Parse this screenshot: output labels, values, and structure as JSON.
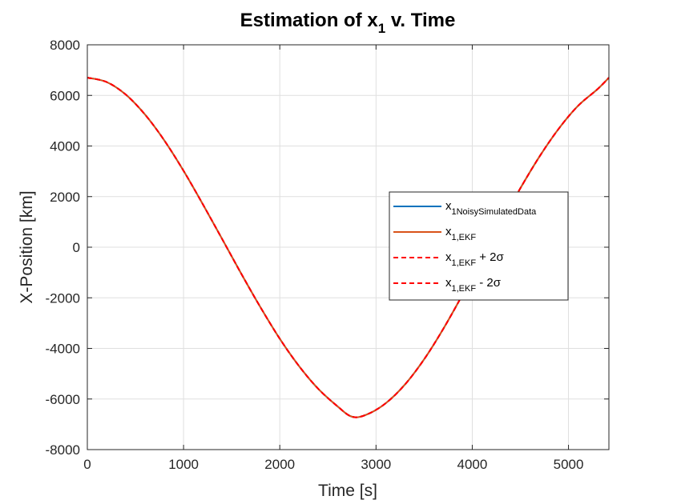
{
  "chart_data": {
    "type": "line",
    "title": "Estimation of x",
    "title_subscript": "1",
    "title_suffix": " v. Time",
    "xlabel": "Time [s]",
    "ylabel": "X-Position [km]",
    "xlim": [
      0,
      5420
    ],
    "ylim": [
      -8000,
      8000
    ],
    "xticks": [
      0,
      1000,
      2000,
      3000,
      4000,
      5000
    ],
    "yticks": [
      -8000,
      -6000,
      -4000,
      -2000,
      0,
      2000,
      4000,
      6000,
      8000
    ],
    "grid": true,
    "legend_position": "center-right",
    "x": [
      0,
      200,
      400,
      600,
      800,
      1000,
      1200,
      1400,
      1600,
      1800,
      2000,
      2200,
      2400,
      2600,
      2750,
      2900,
      3100,
      3300,
      3500,
      3700,
      3900,
      4100,
      4300,
      4500,
      4700,
      4900,
      5100,
      5300,
      5420
    ],
    "series": [
      {
        "name": "x",
        "name_sub": "1NoisySimulatedData",
        "name_suffix": "",
        "color": "#0072bd",
        "dash": "solid",
        "values": [
          6700,
          6530,
          6030,
          5240,
          4220,
          3020,
          1700,
          330,
          -1050,
          -2380,
          -3620,
          -4700,
          -5600,
          -6290,
          -6700,
          -6620,
          -6170,
          -5430,
          -4430,
          -3220,
          -1870,
          -440,
          970,
          2330,
          3590,
          4690,
          5590,
          6240,
          6700
        ]
      },
      {
        "name": "x",
        "name_sub": "1,EKF",
        "name_suffix": "",
        "color": "#d95319",
        "dash": "solid",
        "values": [
          6700,
          6530,
          6030,
          5240,
          4220,
          3020,
          1700,
          330,
          -1050,
          -2380,
          -3620,
          -4700,
          -5600,
          -6290,
          -6700,
          -6620,
          -6170,
          -5430,
          -4430,
          -3220,
          -1870,
          -440,
          970,
          2330,
          3590,
          4690,
          5590,
          6240,
          6700
        ]
      },
      {
        "name": "x",
        "name_sub": "1,EKF",
        "name_suffix": " + 2σ",
        "color": "#ff0000",
        "dash": "dashed",
        "values": [
          6700,
          6530,
          6030,
          5240,
          4220,
          3020,
          1700,
          330,
          -1050,
          -2380,
          -3620,
          -4700,
          -5600,
          -6290,
          -6700,
          -6620,
          -6170,
          -5430,
          -4430,
          -3220,
          -1870,
          -440,
          970,
          2330,
          3590,
          4690,
          5590,
          6240,
          6700
        ]
      },
      {
        "name": "x",
        "name_sub": "1,EKF",
        "name_suffix": " - 2σ",
        "color": "#ff0000",
        "dash": "dashed",
        "values": [
          6700,
          6530,
          6030,
          5240,
          4220,
          3020,
          1700,
          330,
          -1050,
          -2380,
          -3620,
          -4700,
          -5600,
          -6290,
          -6700,
          -6620,
          -6170,
          -5430,
          -4430,
          -3220,
          -1870,
          -440,
          970,
          2330,
          3590,
          4690,
          5590,
          6240,
          6700
        ]
      }
    ]
  }
}
